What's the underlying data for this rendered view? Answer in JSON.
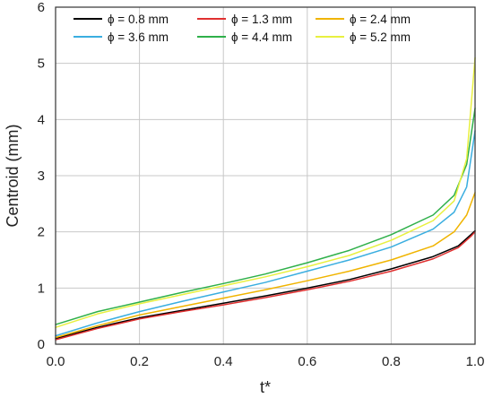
{
  "chart_data": {
    "type": "line",
    "title": "",
    "xlabel": "t*",
    "ylabel": "Centroid   (mm)",
    "xlim": [
      0,
      1
    ],
    "ylim": [
      0,
      6
    ],
    "x_ticks": [
      "0.0",
      "0.2",
      "0.4",
      "0.6",
      "0.8",
      "1.0"
    ],
    "y_ticks": [
      "0",
      "1",
      "2",
      "3",
      "4",
      "5",
      "6"
    ],
    "grid": true,
    "legend_position": "top",
    "series": [
      {
        "name": "ϕ = 0.8 mm",
        "color": "#000000",
        "points": [
          [
            0,
            0.1
          ],
          [
            0.1,
            0.3
          ],
          [
            0.2,
            0.47
          ],
          [
            0.3,
            0.6
          ],
          [
            0.4,
            0.73
          ],
          [
            0.5,
            0.86
          ],
          [
            0.6,
            1.0
          ],
          [
            0.7,
            1.15
          ],
          [
            0.8,
            1.34
          ],
          [
            0.9,
            1.56
          ],
          [
            0.96,
            1.75
          ],
          [
            0.99,
            1.95
          ],
          [
            1.0,
            2.02
          ]
        ]
      },
      {
        "name": "ϕ = 1.3 mm",
        "color": "#e03030",
        "points": [
          [
            0,
            0.08
          ],
          [
            0.1,
            0.28
          ],
          [
            0.2,
            0.45
          ],
          [
            0.3,
            0.58
          ],
          [
            0.4,
            0.7
          ],
          [
            0.5,
            0.83
          ],
          [
            0.6,
            0.97
          ],
          [
            0.7,
            1.12
          ],
          [
            0.8,
            1.3
          ],
          [
            0.9,
            1.52
          ],
          [
            0.96,
            1.72
          ],
          [
            0.99,
            1.92
          ],
          [
            1.0,
            2.0
          ]
        ]
      },
      {
        "name": "ϕ = 2.4 mm",
        "color": "#f0b400",
        "points": [
          [
            0,
            0.12
          ],
          [
            0.1,
            0.33
          ],
          [
            0.2,
            0.52
          ],
          [
            0.3,
            0.67
          ],
          [
            0.4,
            0.82
          ],
          [
            0.5,
            0.97
          ],
          [
            0.6,
            1.13
          ],
          [
            0.7,
            1.3
          ],
          [
            0.8,
            1.5
          ],
          [
            0.9,
            1.75
          ],
          [
            0.95,
            2.0
          ],
          [
            0.98,
            2.3
          ],
          [
            1.0,
            2.7
          ]
        ]
      },
      {
        "name": "ϕ = 3.6 mm",
        "color": "#3aaee0",
        "points": [
          [
            0,
            0.15
          ],
          [
            0.1,
            0.38
          ],
          [
            0.2,
            0.58
          ],
          [
            0.3,
            0.76
          ],
          [
            0.4,
            0.93
          ],
          [
            0.5,
            1.1
          ],
          [
            0.6,
            1.3
          ],
          [
            0.7,
            1.5
          ],
          [
            0.8,
            1.73
          ],
          [
            0.9,
            2.05
          ],
          [
            0.95,
            2.35
          ],
          [
            0.98,
            2.8
          ],
          [
            1.0,
            3.8
          ]
        ]
      },
      {
        "name": "ϕ = 4.4 mm",
        "color": "#2fb04a",
        "points": [
          [
            0,
            0.35
          ],
          [
            0.1,
            0.58
          ],
          [
            0.2,
            0.75
          ],
          [
            0.3,
            0.92
          ],
          [
            0.4,
            1.08
          ],
          [
            0.5,
            1.25
          ],
          [
            0.6,
            1.45
          ],
          [
            0.7,
            1.67
          ],
          [
            0.8,
            1.95
          ],
          [
            0.9,
            2.3
          ],
          [
            0.95,
            2.65
          ],
          [
            0.98,
            3.2
          ],
          [
            1.0,
            4.2
          ]
        ]
      },
      {
        "name": "ϕ = 5.2 mm",
        "color": "#e8f040",
        "points": [
          [
            0,
            0.3
          ],
          [
            0.1,
            0.54
          ],
          [
            0.2,
            0.72
          ],
          [
            0.3,
            0.88
          ],
          [
            0.4,
            1.04
          ],
          [
            0.5,
            1.2
          ],
          [
            0.6,
            1.38
          ],
          [
            0.7,
            1.58
          ],
          [
            0.8,
            1.85
          ],
          [
            0.9,
            2.2
          ],
          [
            0.95,
            2.55
          ],
          [
            0.98,
            3.3
          ],
          [
            1.0,
            5.1
          ]
        ]
      }
    ]
  }
}
